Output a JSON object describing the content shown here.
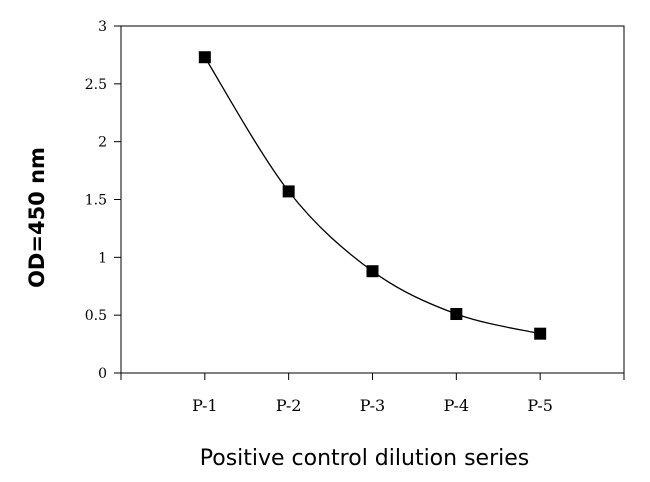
{
  "chart_data": {
    "type": "line",
    "title": "",
    "xlabel": "Positive control dilution series",
    "ylabel": "OD=450 nm",
    "categories": [
      "P-1",
      "P-2",
      "P-3",
      "P-4",
      "P-5"
    ],
    "series": [
      {
        "values": [
          2.73,
          1.57,
          0.88,
          0.51,
          0.34
        ]
      }
    ],
    "ylim": [
      0,
      3
    ],
    "yticks": [
      "0",
      "0.5",
      "1",
      "1.5",
      "2",
      "2.5",
      "3"
    ],
    "grid": false,
    "legend": "none",
    "marker": "square",
    "line_style": "smooth",
    "colors": {
      "line": "#000000",
      "marker": "#000000",
      "axis": "#000000"
    }
  }
}
